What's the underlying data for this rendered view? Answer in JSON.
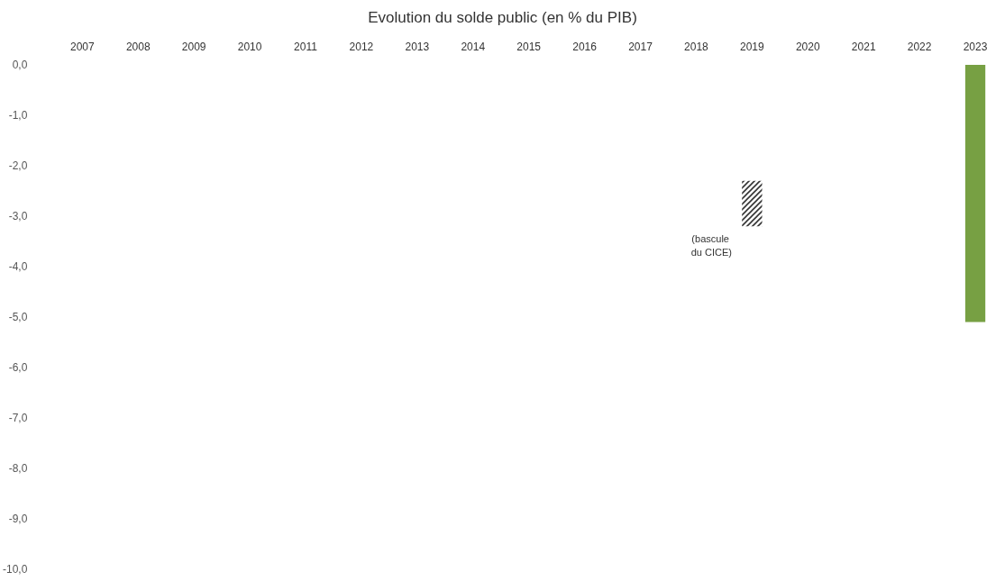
{
  "chart_data": {
    "type": "bar",
    "title": "Evolution du solde public (en % du PIB)",
    "categories": [
      "2007",
      "2008",
      "2009",
      "2010",
      "2011",
      "2012",
      "2013",
      "2014",
      "2015",
      "2016",
      "2017",
      "2018",
      "2019",
      "2020",
      "2021",
      "2022",
      "2023"
    ],
    "series": [
      {
        "color": "#77a043",
        "values": [
          null,
          null,
          null,
          null,
          null,
          null,
          null,
          null,
          null,
          null,
          null,
          null,
          null,
          null,
          null,
          null,
          -5.1
        ]
      },
      {
        "color": "#333333",
        "base": [
          null,
          null,
          null,
          null,
          null,
          null,
          null,
          null,
          null,
          null,
          null,
          null,
          -2.3,
          null,
          null,
          null,
          null
        ],
        "values": [
          null,
          null,
          null,
          null,
          null,
          null,
          null,
          null,
          null,
          null,
          null,
          null,
          -0.9,
          null,
          null,
          null,
          null
        ]
      }
    ],
    "ylim": [
      -10,
      0
    ],
    "yticks": [
      {
        "value": 0,
        "label": "0,0"
      },
      {
        "value": -1,
        "label": "-1,0"
      },
      {
        "value": -2,
        "label": "-2,0"
      },
      {
        "value": -3,
        "label": "-3,0"
      },
      {
        "value": -4,
        "label": "-4,0"
      },
      {
        "value": -5,
        "label": "-5,0"
      },
      {
        "value": -6,
        "label": "-6,0"
      },
      {
        "value": -7,
        "label": "-7,0"
      },
      {
        "value": -8,
        "label": "-8,0"
      },
      {
        "value": -9,
        "label": "-9,0"
      },
      {
        "value": -10,
        "label": "-10,0"
      }
    ],
    "annotations": [
      "(bascule du CICE)"
    ],
    "grid": false
  }
}
